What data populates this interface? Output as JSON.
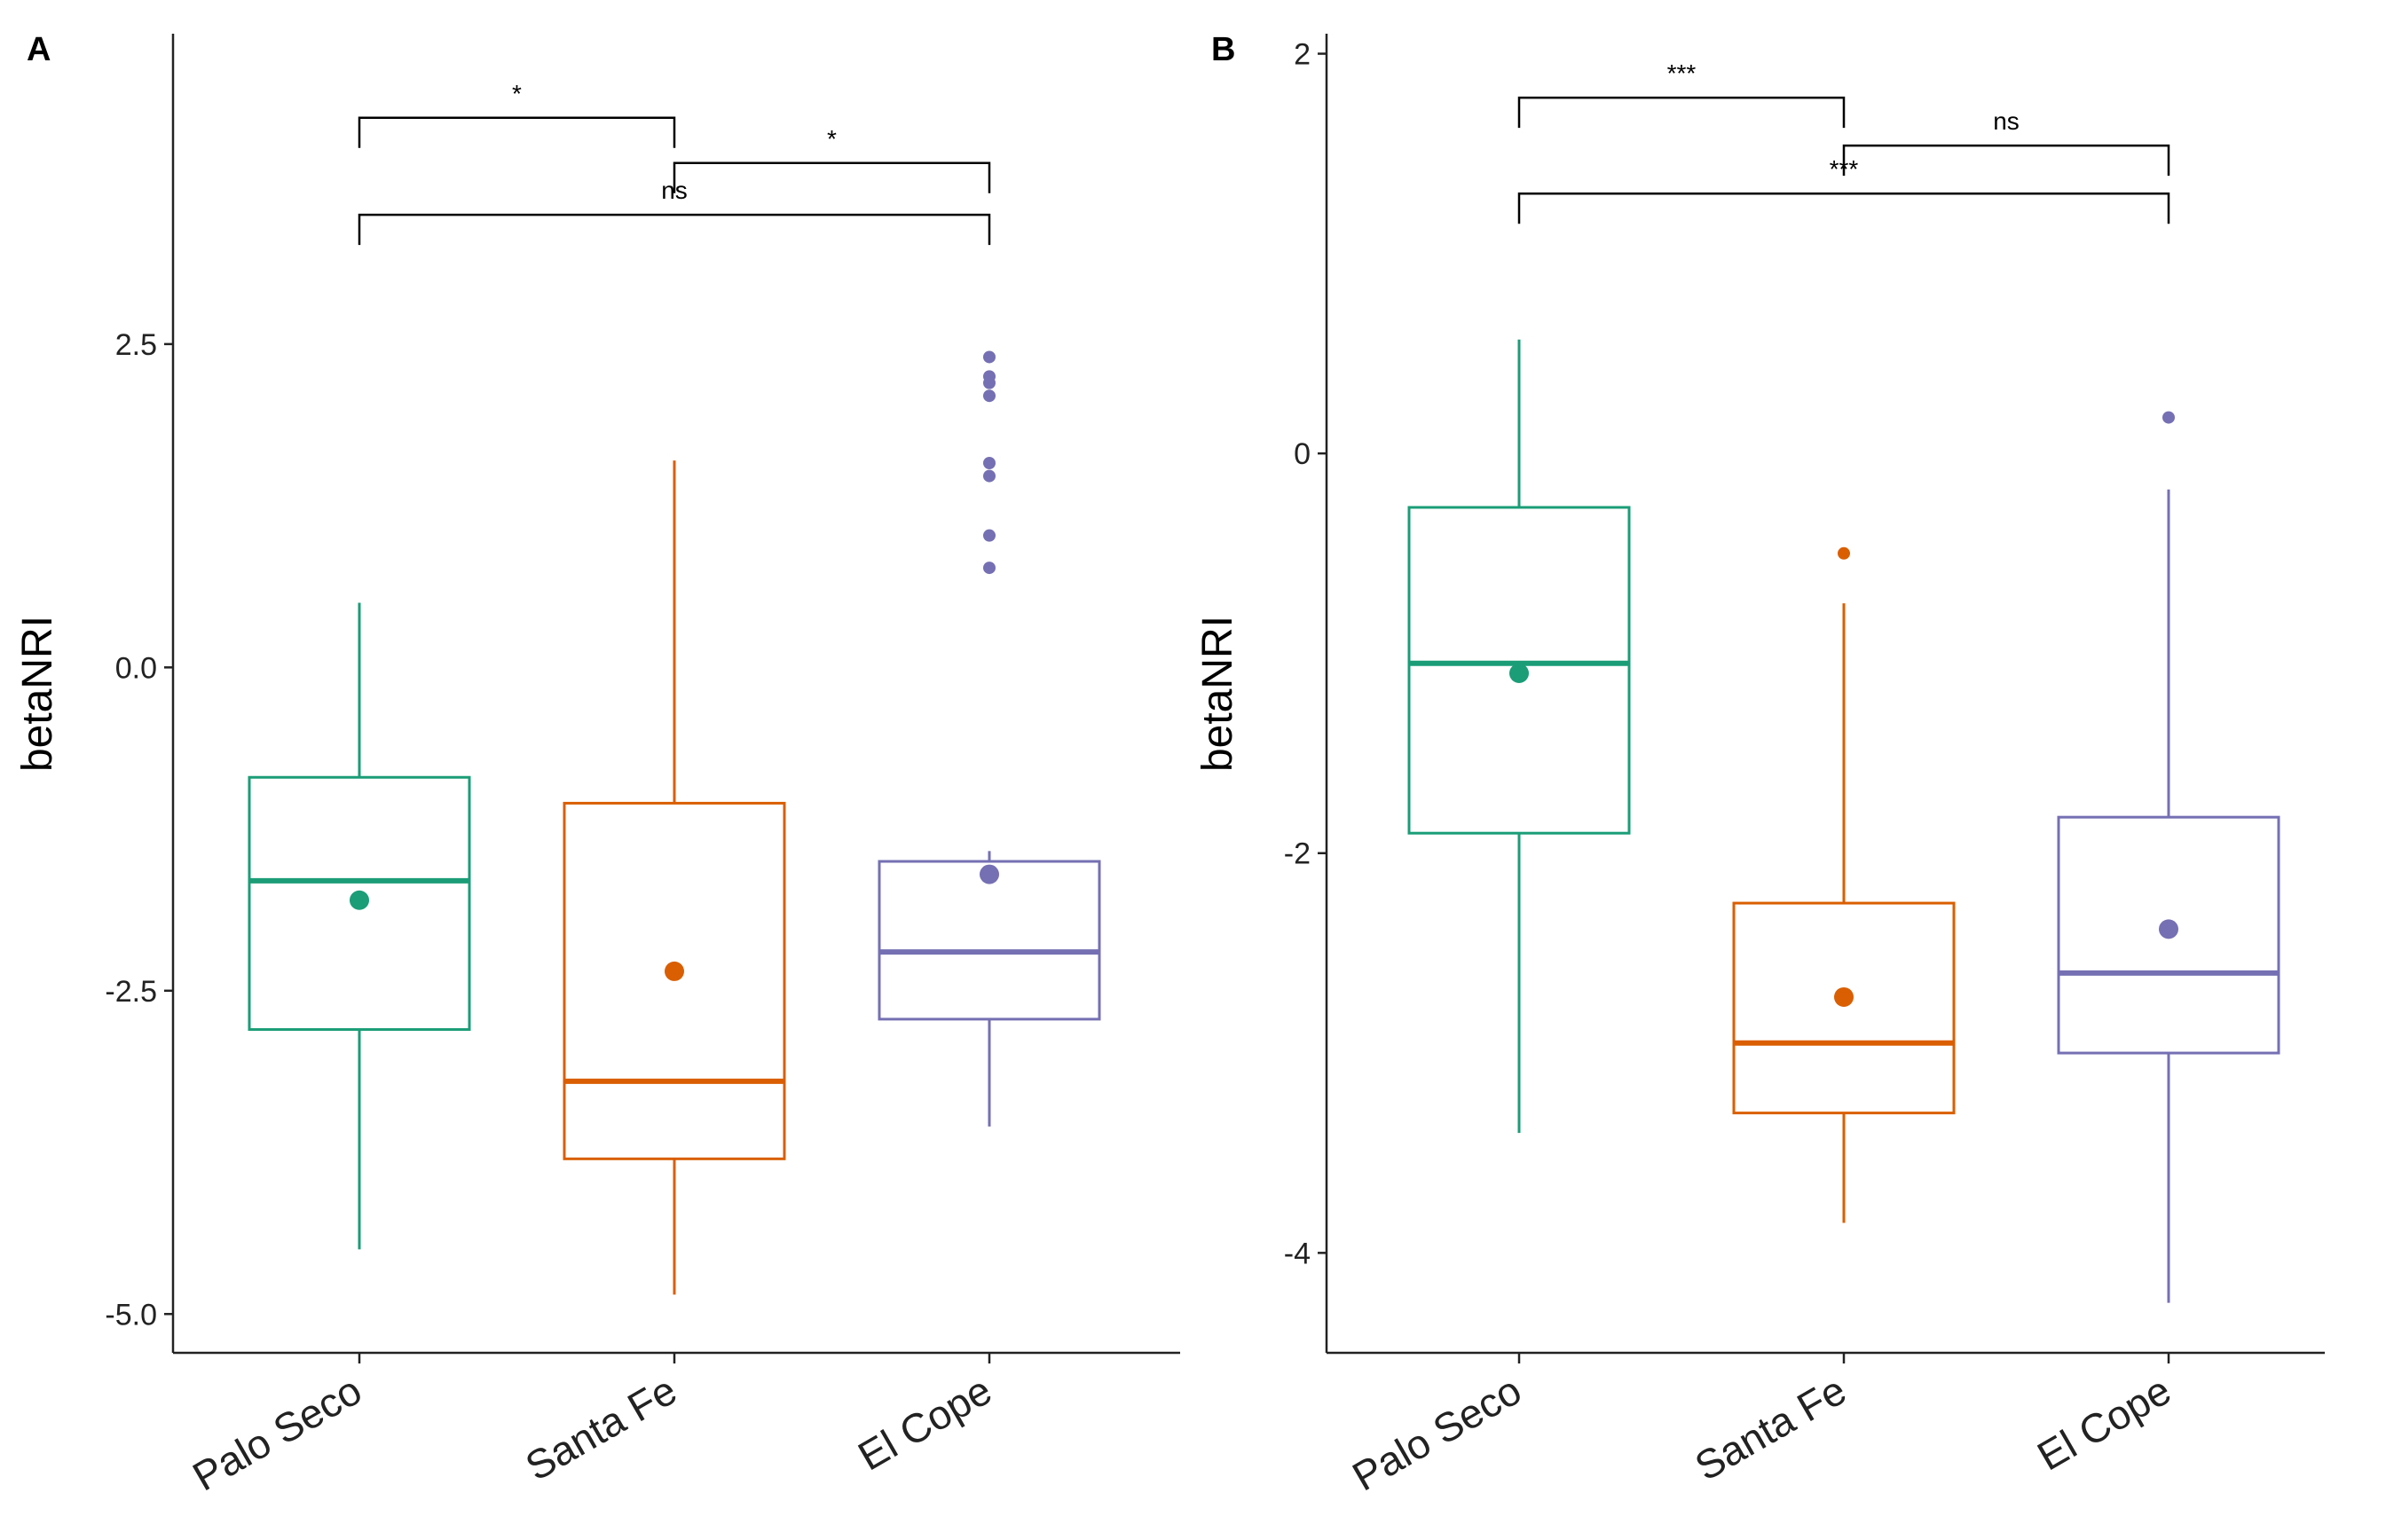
{
  "chart_data": [
    {
      "panel": "A",
      "type": "boxplot",
      "ylabel": "betaNRI",
      "xlabel": "",
      "categories": [
        "Palo Seco",
        "Santa Fe",
        "El Cope"
      ],
      "ylim": [
        -5.3,
        4.9
      ],
      "yticks": [
        2.5,
        0.0,
        -2.5,
        -5.0
      ],
      "ytick_labels": [
        "2.5",
        "0.0",
        "-2.5",
        "-5.0"
      ],
      "colors": [
        "#1b9e77",
        "#d95f02",
        "#7570b3"
      ],
      "boxes": [
        {
          "group": "Palo Seco",
          "whisker_low": -4.5,
          "q1": -2.8,
          "median": -1.65,
          "q3": -0.85,
          "whisker_high": 0.5,
          "mean": -1.8,
          "outliers": []
        },
        {
          "group": "Santa Fe",
          "whisker_low": -4.85,
          "q1": -3.8,
          "median": -3.2,
          "q3": -1.05,
          "whisker_high": 1.6,
          "mean": -2.35,
          "outliers": []
        },
        {
          "group": "El Cope",
          "whisker_low": -3.55,
          "q1": -2.72,
          "median": -2.2,
          "q3": -1.5,
          "whisker_high": -1.42,
          "mean": -1.6,
          "outliers": [
            2.4,
            2.25,
            2.2,
            2.1,
            1.58,
            1.48,
            1.02,
            0.77
          ]
        }
      ],
      "comparisons": [
        {
          "groups": [
            "Palo Seco",
            "Santa Fe"
          ],
          "label": "*",
          "y": 4.25
        },
        {
          "groups": [
            "Santa Fe",
            "El Cope"
          ],
          "label": "*",
          "y": 3.9
        },
        {
          "groups": [
            "Palo Seco",
            "El Cope"
          ],
          "label": "ns",
          "y": 3.5
        }
      ]
    },
    {
      "panel": "B",
      "type": "boxplot",
      "ylabel": "betaNRI",
      "xlabel": "",
      "categories": [
        "Palo Seco",
        "Santa Fe",
        "El Cope"
      ],
      "ylim": [
        -4.5,
        2.1
      ],
      "yticks": [
        2,
        0,
        -2,
        -4
      ],
      "ytick_labels": [
        "2",
        "0",
        "-2",
        "-4"
      ],
      "colors": [
        "#1b9e77",
        "#d95f02",
        "#7570b3"
      ],
      "boxes": [
        {
          "group": "Palo Seco",
          "whisker_low": -3.4,
          "q1": -1.9,
          "median": -1.05,
          "q3": -0.27,
          "whisker_high": 0.57,
          "mean": -1.1,
          "outliers": []
        },
        {
          "group": "Santa Fe",
          "whisker_low": -3.85,
          "q1": -3.3,
          "median": -2.95,
          "q3": -2.25,
          "whisker_high": -0.75,
          "mean": -2.72,
          "outliers": [
            -0.5
          ]
        },
        {
          "group": "El Cope",
          "whisker_low": -4.25,
          "q1": -3.0,
          "median": -2.6,
          "q3": -1.82,
          "whisker_high": -0.18,
          "mean": -2.38,
          "outliers": [
            0.18
          ]
        }
      ],
      "comparisons": [
        {
          "groups": [
            "Palo Seco",
            "Santa Fe"
          ],
          "label": "***",
          "y": 1.78
        },
        {
          "groups": [
            "Santa Fe",
            "El Cope"
          ],
          "label": "ns",
          "y": 1.54
        },
        {
          "groups": [
            "Palo Seco",
            "El Cope"
          ],
          "label": "***",
          "y": 1.3
        }
      ]
    }
  ]
}
